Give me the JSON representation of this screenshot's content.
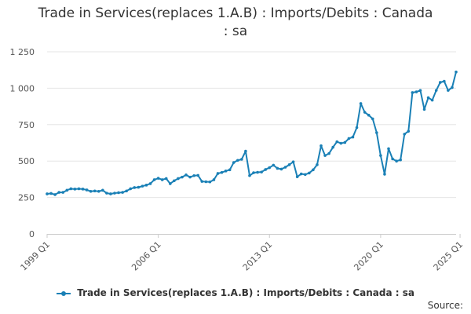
{
  "chart_data": {
    "type": "line",
    "title_lines": [
      "Trade in Services(replaces 1.A.B) : Imports/Debits : Canada",
      ": sa"
    ],
    "xlabel": "",
    "ylabel": "",
    "x_tick_labels": [
      "1999 Q1",
      "2006 Q1",
      "2013 Q1",
      "2020 Q1",
      "2025 Q1"
    ],
    "y_tick_labels": [
      "0",
      "250",
      "500",
      "750",
      "1 000",
      "1 250"
    ],
    "ylim": [
      0,
      1250
    ],
    "grid": "horizontal",
    "legend_position": "bottom",
    "series": [
      {
        "name": "Trade in Services(replaces 1.A.B) : Imports/Debits : Canada : sa",
        "color": "#1a80b6",
        "x_start": "1999 Q1",
        "frequency": "quarterly",
        "values": [
          275,
          278,
          270,
          285,
          285,
          300,
          310,
          308,
          310,
          308,
          302,
          292,
          295,
          292,
          300,
          280,
          275,
          280,
          283,
          285,
          295,
          310,
          318,
          320,
          328,
          335,
          345,
          372,
          382,
          372,
          380,
          345,
          365,
          380,
          390,
          405,
          390,
          400,
          402,
          360,
          358,
          357,
          372,
          415,
          422,
          432,
          440,
          490,
          505,
          512,
          568,
          400,
          420,
          423,
          425,
          442,
          455,
          472,
          450,
          445,
          458,
          475,
          495,
          392,
          412,
          408,
          418,
          440,
          475,
          605,
          538,
          552,
          595,
          633,
          622,
          628,
          655,
          665,
          730,
          895,
          835,
          815,
          790,
          695,
          538,
          410,
          585,
          515,
          500,
          508,
          685,
          705,
          970,
          975,
          985,
          855,
          935,
          918,
          985,
          1040,
          1048,
          985,
          1005,
          1112
        ]
      }
    ]
  },
  "source_label": "Source:"
}
